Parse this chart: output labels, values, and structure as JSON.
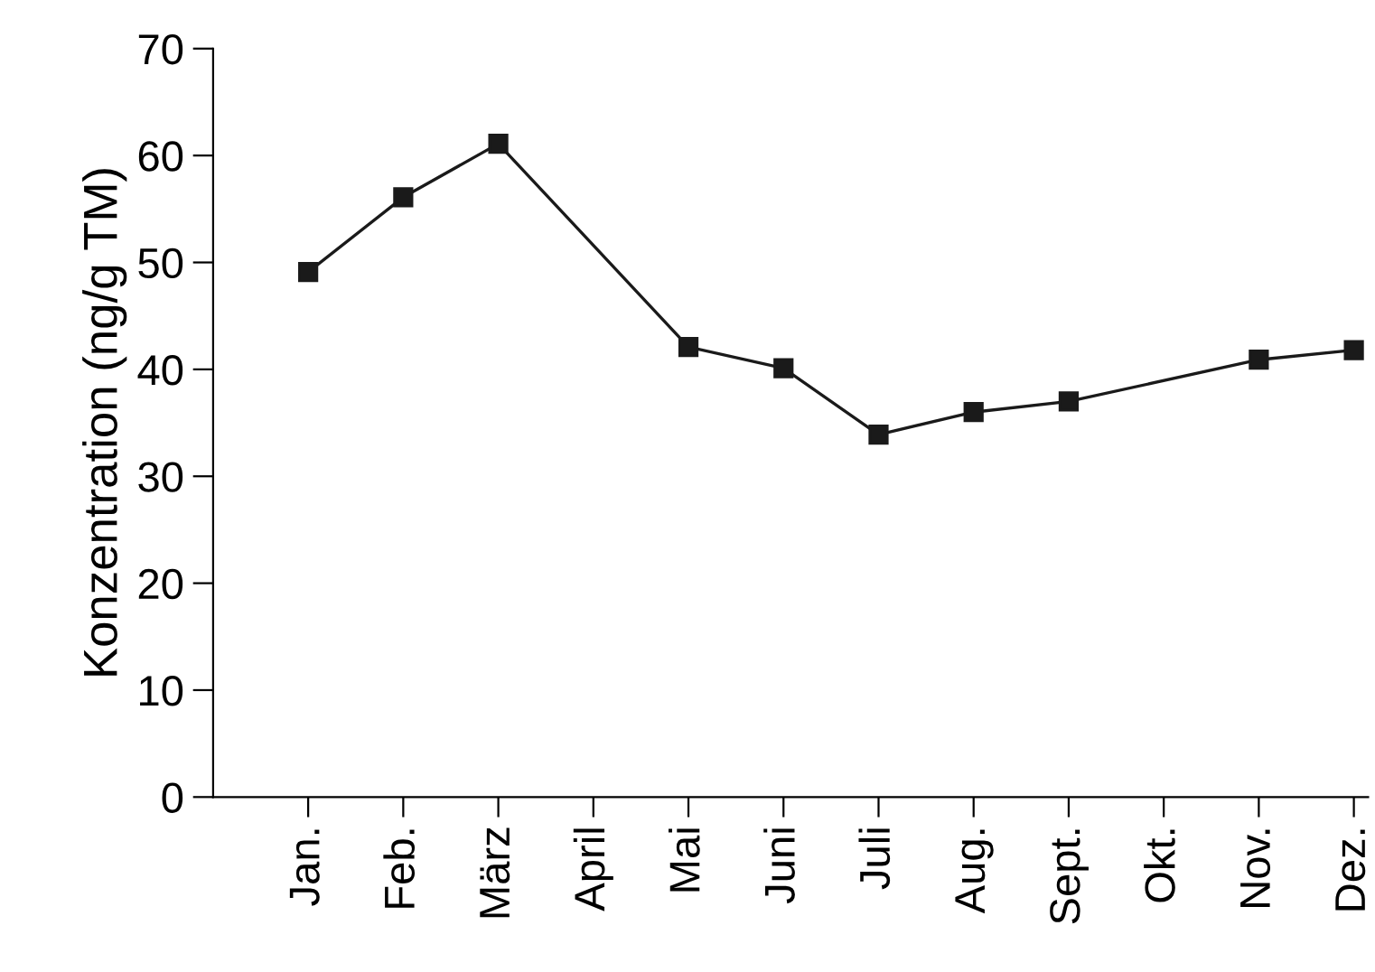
{
  "chart_data": {
    "type": "line",
    "ylabel": "Konzentration (ng/g TM)",
    "categories": [
      "Jan.",
      "Feb.",
      "März",
      "April",
      "Mai",
      "Juni",
      "Juli",
      "Aug.",
      "Sept.",
      "Okt.",
      "Nov.",
      "Dez."
    ],
    "series": [
      {
        "color": "#1a1a1a",
        "values": [
          49.1,
          56.1,
          61.1,
          null,
          42.1,
          40.1,
          33.9,
          36.0,
          37.0,
          null,
          40.9,
          41.8
        ]
      }
    ],
    "ylim": [
      0,
      70
    ],
    "yticks": [
      0,
      10,
      20,
      30,
      40,
      50,
      60,
      70
    ],
    "grid": false,
    "legend": false,
    "marker": "square",
    "line_style": "solid"
  }
}
